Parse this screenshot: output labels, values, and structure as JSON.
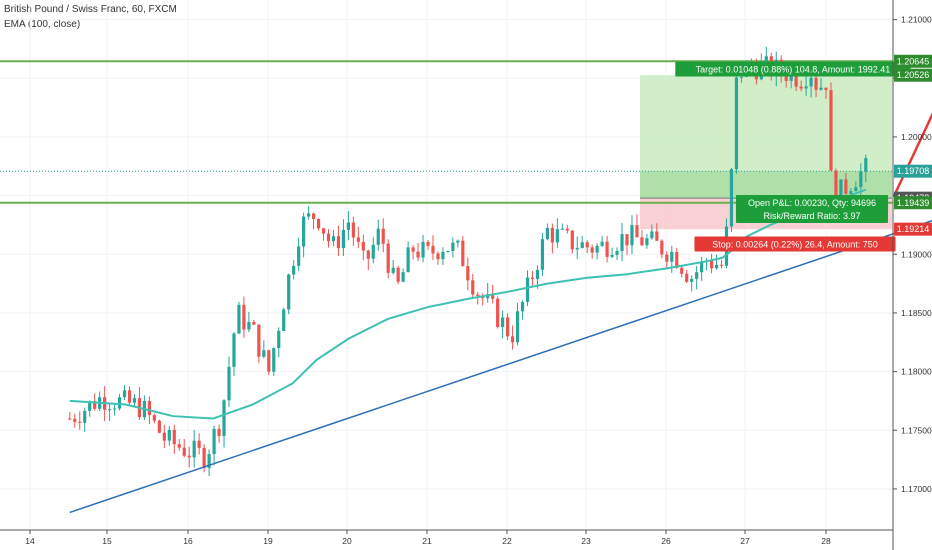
{
  "header": {
    "symbol_title": "British Pound / Swiss Franc, 60, FXCM",
    "indicator": "EMA (100, close)"
  },
  "colors": {
    "up": "#26a69a",
    "down": "#ef5350",
    "ema": "#3cc1b3",
    "trendline": "#2e6fb8",
    "hline": "#6ab04c",
    "target_zone": "#c9ebc0",
    "stop_zone": "#f8c9cc",
    "arrow": "#e53935",
    "target_badge": "#1e9e3a",
    "stop_badge": "#e53935",
    "pnl_badge": "#1e9e3a"
  },
  "chart_data": {
    "type": "candlestick",
    "title": "British Pound / Swiss Franc, 60, FXCM",
    "indicator": "EMA (100, close)",
    "x_ticks": [
      "14",
      "15",
      "16",
      "19",
      "20",
      "21",
      "22",
      "23",
      "26",
      "27",
      "28"
    ],
    "y_ticks": [
      "1.21000",
      "1.20500",
      "1.20000",
      "1.19500",
      "1.19000",
      "1.18500",
      "1.18000",
      "1.17500",
      "1.17000"
    ],
    "ylim": [
      1.1665,
      1.2115
    ],
    "price_labels": [
      {
        "text": "1.20645",
        "value": 1.20645,
        "color": "#2e8b2e"
      },
      {
        "text": "1.20526",
        "value": 1.20526,
        "color": "#2e8b2e"
      },
      {
        "text": "1.19708",
        "value": 1.19708,
        "color": "#2aa198"
      },
      {
        "text": "1.19478",
        "value": 1.19478,
        "color": "#555555"
      },
      {
        "text": "1.19439",
        "value": 1.19439,
        "color": "#2e8b2e"
      },
      {
        "text": "1.19214",
        "value": 1.19214,
        "color": "#e53935"
      }
    ],
    "horizontal_lines": [
      1.20645,
      1.19439
    ],
    "position": {
      "entry": 1.19478,
      "target": 1.20526,
      "stop": 1.19214,
      "current": 1.19708,
      "target_text": "Target: 0.01048 (0.88%) 104.8, Amount: 1992.41",
      "stop_text": "Stop: 0.00264 (0.22%) 26.4, Amount: 750",
      "pnl_text": "Open P&L: 0.00230, Qty: 94696",
      "rr_text": "Risk/Reward Ratio: 3.97"
    },
    "trendline": {
      "from_day": 13.5,
      "from_price": 1.168,
      "to_day": 25.7,
      "to_price": 1.196
    },
    "arrow": {
      "from_day": 23.85,
      "from_price": 1.1949,
      "to_day": 24.55,
      "to_price": 1.205
    },
    "path": [
      [
        13.5,
        1.176
      ],
      [
        13.9,
        1.1778
      ],
      [
        14.4,
        1.177
      ],
      [
        14.7,
        1.1742
      ],
      [
        15.0,
        1.1732
      ],
      [
        15.2,
        1.1728
      ],
      [
        15.4,
        1.176
      ],
      [
        15.6,
        1.185
      ],
      [
        15.8,
        1.1835
      ],
      [
        16.0,
        1.18
      ],
      [
        16.2,
        1.1865
      ],
      [
        16.4,
        1.1925
      ],
      [
        16.6,
        1.1935
      ],
      [
        16.8,
        1.1905
      ],
      [
        17.0,
        1.1928
      ],
      [
        17.2,
        1.189
      ],
      [
        17.4,
        1.192
      ],
      [
        17.6,
        1.1868
      ],
      [
        17.8,
        1.1905
      ],
      [
        18.0,
        1.19
      ],
      [
        18.2,
        1.1908
      ],
      [
        18.4,
        1.1902
      ],
      [
        18.6,
        1.187
      ],
      [
        18.9,
        1.1845
      ],
      [
        19.05,
        1.183
      ],
      [
        19.2,
        1.186
      ],
      [
        19.5,
        1.192
      ],
      [
        19.8,
        1.191
      ],
      [
        20.1,
        1.1905
      ],
      [
        20.5,
        1.1915
      ],
      [
        20.8,
        1.191
      ],
      [
        21.1,
        1.19
      ],
      [
        21.3,
        1.188
      ],
      [
        21.5,
        1.1895
      ],
      [
        21.7,
        1.189
      ],
      [
        21.8,
        1.1945
      ],
      [
        21.85,
        1.2035
      ],
      [
        21.9,
        1.2055
      ],
      [
        22.1,
        1.206
      ],
      [
        22.3,
        1.2058
      ],
      [
        22.5,
        1.2055
      ],
      [
        22.7,
        1.205
      ],
      [
        22.8,
        1.2058
      ],
      [
        22.9,
        1.2042
      ],
      [
        23.0,
        1.2048
      ],
      [
        23.05,
        1.1965
      ],
      [
        23.15,
        1.195
      ],
      [
        23.35,
        1.1965
      ],
      [
        23.5,
        1.1972
      ]
    ],
    "ema": [
      [
        13.5,
        1.1775
      ],
      [
        14.2,
        1.1772
      ],
      [
        14.8,
        1.1762
      ],
      [
        15.3,
        1.176
      ],
      [
        15.8,
        1.1772
      ],
      [
        16.3,
        1.179
      ],
      [
        16.6,
        1.181
      ],
      [
        17.0,
        1.1828
      ],
      [
        17.5,
        1.1845
      ],
      [
        18.0,
        1.1855
      ],
      [
        18.5,
        1.1862
      ],
      [
        19.0,
        1.1868
      ],
      [
        19.5,
        1.1875
      ],
      [
        20.0,
        1.188
      ],
      [
        20.5,
        1.1883
      ],
      [
        21.0,
        1.1888
      ],
      [
        21.5,
        1.1894
      ],
      [
        21.7,
        1.1897
      ],
      [
        21.85,
        1.1905
      ],
      [
        22.0,
        1.1915
      ],
      [
        22.3,
        1.1925
      ],
      [
        22.6,
        1.1933
      ],
      [
        22.9,
        1.1938
      ],
      [
        23.1,
        1.1944
      ],
      [
        23.3,
        1.195
      ],
      [
        23.5,
        1.1955
      ]
    ]
  }
}
